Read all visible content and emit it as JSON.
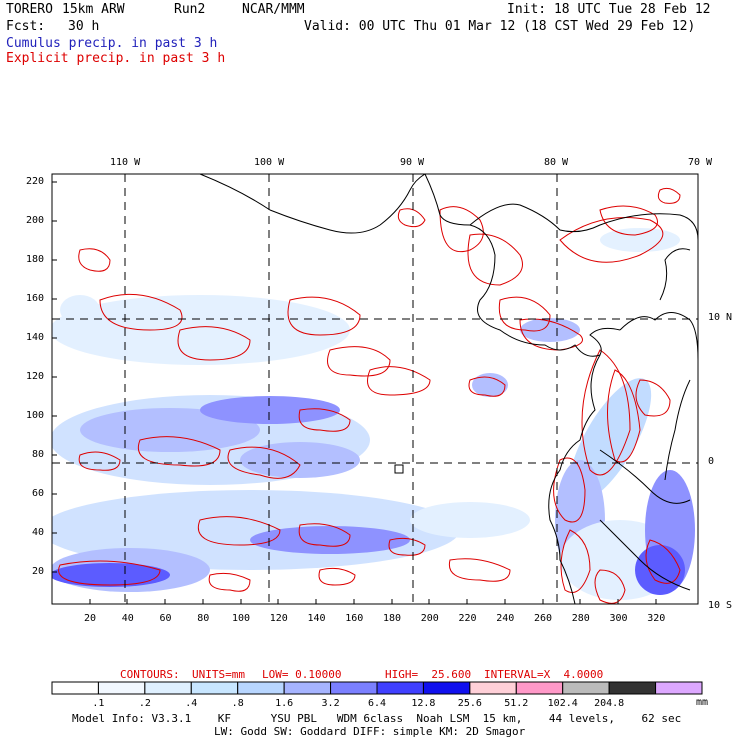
{
  "header": {
    "model": "TORERO",
    "resolution": "15km ARW",
    "run": "Run2",
    "org": "NCAR/MMM",
    "init": "Init: 18 UTC Tue 28 Feb 12",
    "fcst_label": "Fcst:",
    "fcst_hours": "30 h",
    "valid": "Valid: 00 UTC Thu 01 Mar 12 (18 CST Wed 29 Feb 12)"
  },
  "legend": {
    "cumulus": "Cumulus precip. in past 3 h",
    "explicit": "Explicit precip. in past 3 h"
  },
  "axes": {
    "top_lon_labels": [
      "110 W",
      "100 W",
      "90 W",
      "80 W",
      "70 W"
    ],
    "right_lat_labels": [
      "10 N",
      "0",
      "10 S"
    ],
    "left_y_ticks": [
      "220",
      "200",
      "180",
      "160",
      "140",
      "120",
      "100",
      "80",
      "60",
      "40",
      "20"
    ],
    "bottom_x_ticks": [
      "20",
      "40",
      "60",
      "80",
      "100",
      "120",
      "140",
      "160",
      "180",
      "200",
      "220",
      "240",
      "260",
      "280",
      "300",
      "320"
    ]
  },
  "contours": {
    "label": "CONTOURS:",
    "units": "UNITS=mm",
    "low": "LOW= 0.10000",
    "high": "HIGH=  25.600",
    "interval": "INTERVAL=X  4.0000"
  },
  "colorbar": {
    "labels": [
      ".1",
      ".2",
      ".4",
      ".8",
      "1.6",
      "3.2",
      "6.4",
      "12.8",
      "25.6",
      "51.2",
      "102.4",
      "204.8"
    ],
    "unit": "mm",
    "colors": [
      "#ffffff",
      "#f2f8ff",
      "#dff0ff",
      "#c8e6ff",
      "#b8d6ff",
      "#a6b4ff",
      "#7b80ff",
      "#4040ff",
      "#1010ee",
      "#ffd0d8",
      "#ff99c8",
      "#bbbbbb",
      "#333333",
      "#dda8ff"
    ]
  },
  "footer": {
    "line1": "Model Info: V3.3.1    KF      YSU PBL   WDM 6class  Noah LSM  15 km,    44 levels,    62 sec",
    "line2": "LW: Godd SW: Goddard DIFF: simple KM: 2D Smagor"
  }
}
